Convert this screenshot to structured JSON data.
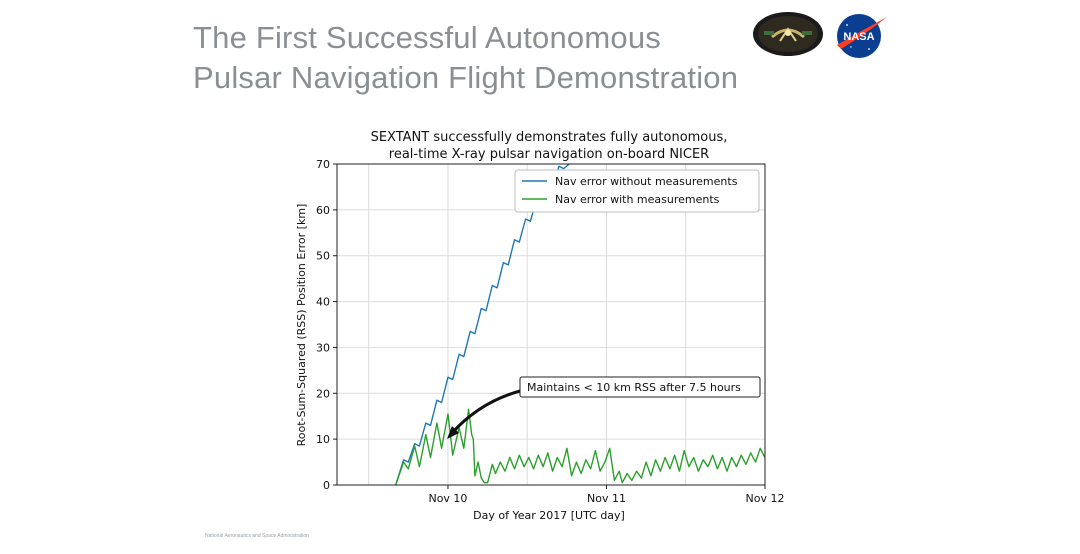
{
  "slide": {
    "title_line1": "The First Successful Autonomous",
    "title_line2": "Pulsar Navigation Flight Demonstration",
    "logo_text": "NASA",
    "footer": "National Aeronautics and Space Administration"
  },
  "colors": {
    "series_without": "#1f77b4",
    "series_with": "#2ca02c",
    "title": "#8a8f94"
  },
  "chart_data": {
    "type": "line",
    "title_line1": "SEXTANT successfully demonstrates fully autonomous,",
    "title_line2": "real-time X-ray pulsar navigation on-board NICER",
    "xlabel": "Day of Year 2017 [UTC day]",
    "ylabel": "Root-Sum-Squared (RSS) Position Error [km]",
    "xlim": [
      9.3,
      12.0
    ],
    "ylim": [
      0,
      70
    ],
    "grid": true,
    "legend_position": "top-right",
    "x_ticks": [
      {
        "value": 10,
        "label": "Nov 10"
      },
      {
        "value": 11,
        "label": "Nov 11"
      },
      {
        "value": 12,
        "label": "Nov 12"
      }
    ],
    "y_ticks": [
      0,
      10,
      20,
      30,
      40,
      50,
      60,
      70
    ],
    "annotation": {
      "text": "Maintains < 10 km RSS after 7.5 hours",
      "target": {
        "x": 10.16,
        "y": 10
      }
    },
    "series": [
      {
        "name": "Nav error without measurements",
        "x": [
          9.67,
          9.72,
          9.75,
          9.79,
          9.82,
          9.86,
          9.89,
          9.93,
          9.96,
          10.0,
          10.03,
          10.07,
          10.1,
          10.14,
          10.17,
          10.21,
          10.24,
          10.28,
          10.31,
          10.35,
          10.38,
          10.42,
          10.45,
          10.49,
          10.52,
          10.56,
          10.6,
          10.63,
          10.67,
          10.7,
          10.73,
          10.765
        ],
        "values": [
          0,
          5.5,
          5.0,
          9.0,
          8.5,
          13.5,
          13.0,
          18.5,
          18.0,
          23.5,
          23.0,
          28.5,
          28.0,
          33.5,
          33.0,
          38.5,
          38.0,
          43.5,
          43.0,
          48.5,
          48.0,
          53.5,
          53.0,
          58.0,
          57.5,
          62.5,
          62.0,
          66.5,
          66.0,
          69.5,
          69.0,
          70.0
        ]
      },
      {
        "name": "Nav error with measurements",
        "x": [
          9.67,
          9.72,
          9.75,
          9.79,
          9.82,
          9.86,
          9.89,
          9.93,
          9.96,
          10.0,
          10.03,
          10.07,
          10.1,
          10.13,
          10.15,
          10.16,
          10.17,
          10.19,
          10.21,
          10.23,
          10.25,
          10.28,
          10.3,
          10.33,
          10.36,
          10.39,
          10.42,
          10.45,
          10.48,
          10.51,
          10.54,
          10.57,
          10.6,
          10.63,
          10.66,
          10.69,
          10.72,
          10.75,
          10.78,
          10.81,
          10.84,
          10.87,
          10.9,
          10.93,
          10.96,
          10.99,
          11.02,
          11.05,
          11.08,
          11.1,
          11.13,
          11.16,
          11.19,
          11.22,
          11.25,
          11.28,
          11.31,
          11.34,
          11.37,
          11.4,
          11.43,
          11.46,
          11.49,
          11.52,
          11.55,
          11.58,
          11.61,
          11.64,
          11.67,
          11.7,
          11.73,
          11.76,
          11.79,
          11.82,
          11.85,
          11.88,
          11.91,
          11.94,
          11.97,
          12.0
        ],
        "values": [
          0,
          5.0,
          3.5,
          8.5,
          4.0,
          11.0,
          6.0,
          13.5,
          8.0,
          15.5,
          6.5,
          12.5,
          8.0,
          16.5,
          11.0,
          10.0,
          2.0,
          5.0,
          1.5,
          0.5,
          0.5,
          4.5,
          2.5,
          5.0,
          3.0,
          6.0,
          3.5,
          6.5,
          4.0,
          6.0,
          3.5,
          6.5,
          4.0,
          7.0,
          3.0,
          6.0,
          4.0,
          8.0,
          2.0,
          5.0,
          2.5,
          5.5,
          3.5,
          7.5,
          3.0,
          5.0,
          8.0,
          1.0,
          3.0,
          0.5,
          2.5,
          1.0,
          3.0,
          1.5,
          5.0,
          2.0,
          5.5,
          3.0,
          6.0,
          3.5,
          6.5,
          3.0,
          7.5,
          4.0,
          6.0,
          3.0,
          5.5,
          4.0,
          6.5,
          3.5,
          6.0,
          3.0,
          6.0,
          4.0,
          6.5,
          4.5,
          7.0,
          5.0,
          8.0,
          6.0
        ]
      }
    ]
  }
}
